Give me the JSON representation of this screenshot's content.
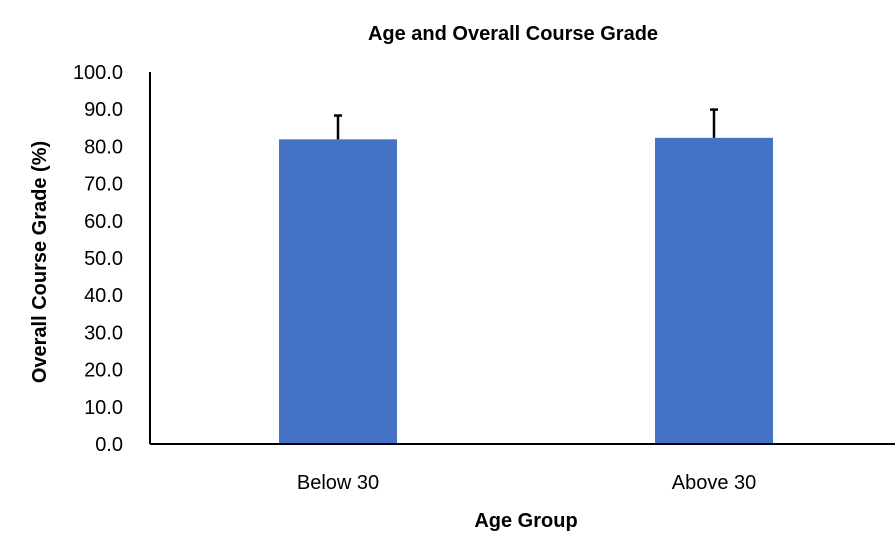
{
  "chart_data": {
    "type": "bar",
    "title": "Age and Overall Course Grade",
    "xlabel": "Age Group",
    "ylabel": "Overall Course Grade (%)",
    "categories": [
      "Below 30",
      "Above 30"
    ],
    "values": [
      81.9,
      82.3
    ],
    "error_bars_upper": [
      6.4,
      7.6
    ],
    "ylim": [
      0,
      100
    ],
    "yticks": [
      "0.0",
      "10.0",
      "20.0",
      "30.0",
      "40.0",
      "50.0",
      "60.0",
      "70.0",
      "80.0",
      "90.0",
      "100.0"
    ],
    "grid": false,
    "legend": "none",
    "bar_color": "#4472C4",
    "axis_color": "#000000"
  }
}
